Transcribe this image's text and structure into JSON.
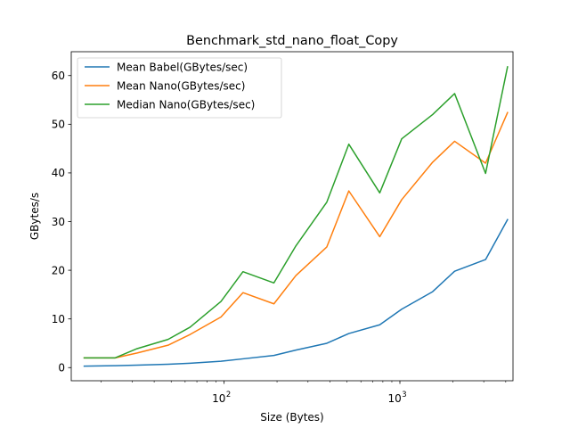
{
  "chart_data": {
    "type": "line",
    "title": "Benchmark_std_nano_float_Copy",
    "xlabel": "Size (Bytes)",
    "ylabel": "GBytes/s",
    "xscale": "log",
    "xlim": [
      13.5,
      4400
    ],
    "ylim": [
      -2.7,
      64.9
    ],
    "x_ticks": [
      {
        "value": 100,
        "base": "10",
        "exp": "2"
      },
      {
        "value": 1000,
        "base": "10",
        "exp": "3"
      }
    ],
    "y_ticks": [
      0,
      10,
      20,
      30,
      40,
      50,
      60
    ],
    "grid": false,
    "legend_position": "upper-left",
    "x": [
      16,
      24,
      32,
      48,
      64,
      96,
      128,
      192,
      256,
      384,
      512,
      768,
      1024,
      1536,
      2048,
      3072,
      4096
    ],
    "series": [
      {
        "name": "Mean Babel(GBytes/sec)",
        "color": "#1f77b4",
        "values": [
          0.3,
          0.4,
          0.5,
          0.7,
          0.9,
          1.3,
          1.8,
          2.5,
          3.6,
          5.0,
          7.0,
          8.8,
          12.0,
          15.6,
          19.8,
          22.2,
          30.4
        ]
      },
      {
        "name": "Mean Nano(GBytes/sec)",
        "color": "#ff7f0e",
        "values": [
          2.0,
          2.0,
          3.0,
          4.6,
          6.8,
          10.4,
          15.4,
          13.1,
          18.9,
          24.8,
          36.3,
          26.9,
          34.5,
          42.2,
          46.5,
          42.0,
          52.4
        ]
      },
      {
        "name": "Median Nano(GBytes/sec)",
        "color": "#2ca02c",
        "values": [
          2.0,
          2.0,
          3.9,
          5.8,
          8.3,
          13.6,
          19.7,
          17.4,
          25.0,
          34.0,
          45.9,
          35.9,
          47.0,
          52.0,
          56.3,
          39.9,
          61.8
        ]
      }
    ]
  }
}
